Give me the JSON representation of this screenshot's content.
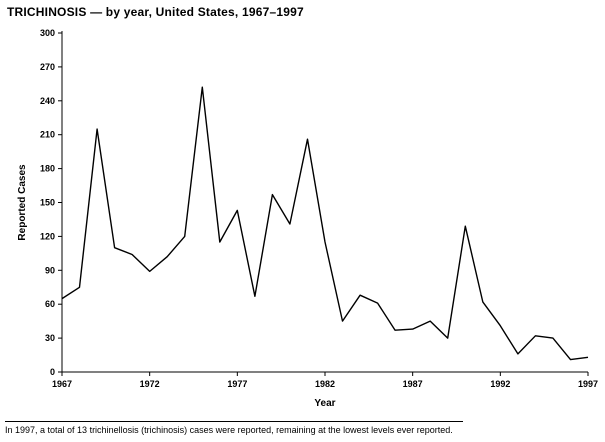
{
  "title": "TRICHINOSIS — by year, United States, 1967–1997",
  "footnote": "In 1997, a total of 13 trichinellosis (trichinosis) cases were reported, remaining at the lowest levels ever reported.",
  "chart_data": {
    "type": "line",
    "title": "TRICHINOSIS — by year, United States, 1967–1997",
    "xlabel": "Year",
    "ylabel": "Reported Cases",
    "ylim": [
      0,
      300
    ],
    "xlim": [
      1967,
      1997
    ],
    "yticks": [
      0,
      30,
      60,
      90,
      120,
      150,
      180,
      210,
      240,
      270,
      300
    ],
    "xticks": [
      1967,
      1972,
      1977,
      1982,
      1987,
      1992,
      1997
    ],
    "grid": false,
    "legend": false,
    "line_color": "#000000",
    "x": [
      1967,
      1968,
      1969,
      1970,
      1971,
      1972,
      1973,
      1974,
      1975,
      1976,
      1977,
      1978,
      1979,
      1980,
      1981,
      1982,
      1983,
      1984,
      1985,
      1986,
      1987,
      1988,
      1989,
      1990,
      1991,
      1992,
      1993,
      1994,
      1995,
      1996,
      1997
    ],
    "values": [
      65,
      75,
      215,
      110,
      104,
      89,
      102,
      120,
      252,
      115,
      143,
      67,
      157,
      131,
      206,
      115,
      45,
      68,
      61,
      37,
      38,
      45,
      30,
      129,
      62,
      41,
      16,
      32,
      30,
      11,
      13
    ]
  }
}
